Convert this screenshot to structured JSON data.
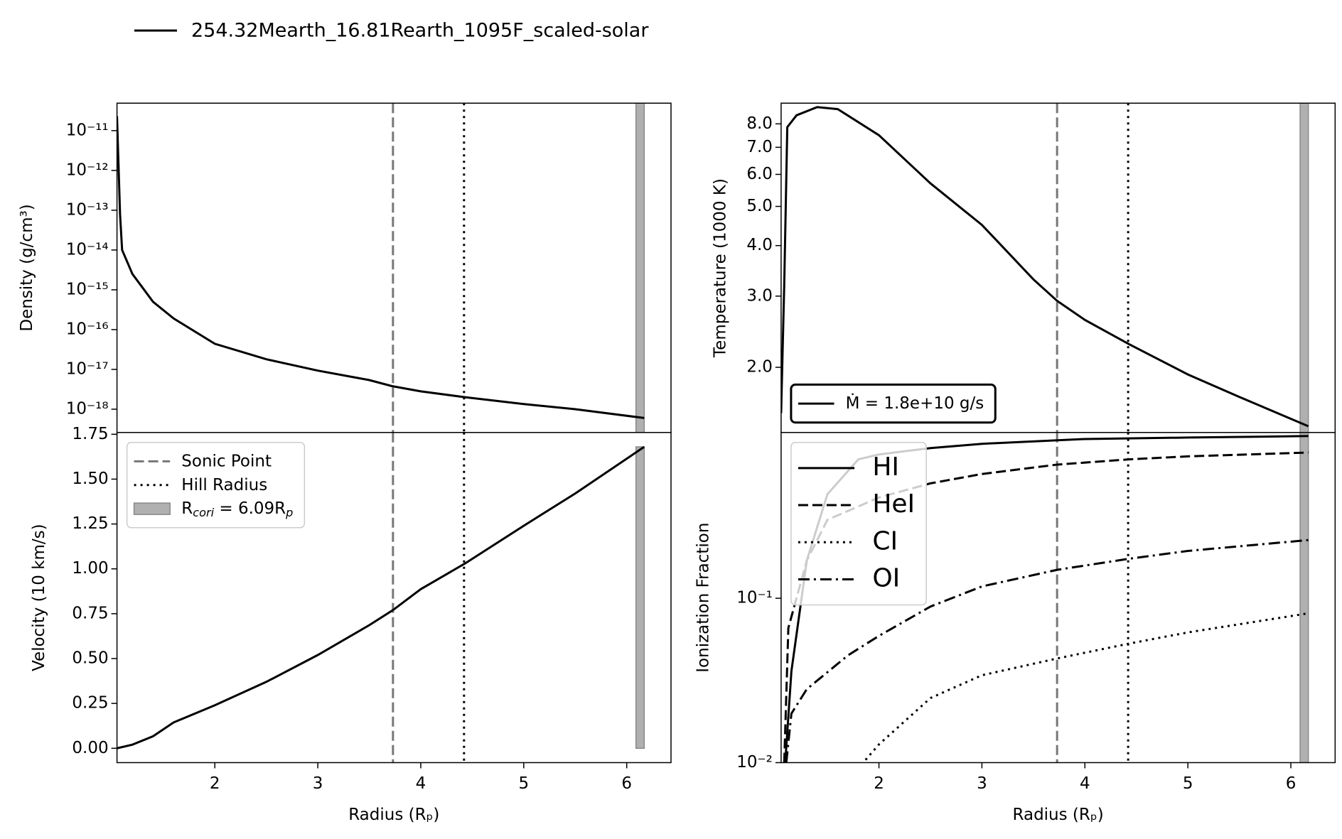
{
  "markers": {
    "sonic_point": {
      "x": 3.73,
      "color": "#777777",
      "style": "dashed"
    },
    "hill_radius": {
      "x": 4.42,
      "color": "#000000",
      "style": "dotted"
    },
    "coriolis_band": {
      "x": [
        6.09,
        6.17
      ],
      "color": "#b0b0b0"
    }
  },
  "chart_data": [
    {
      "type": "line",
      "ylabel": "Density (g/cm³)",
      "log_y": true,
      "xlim": [
        1.05,
        6.43
      ],
      "ylim": [
        2.6e-19,
        4.9e-11
      ],
      "yticks": [
        {
          "value": 1e-11,
          "label": "10⁻¹¹"
        },
        {
          "value": 1e-12,
          "label": "10⁻¹²"
        },
        {
          "value": 1e-13,
          "label": "10⁻¹³"
        },
        {
          "value": 1e-14,
          "label": "10⁻¹⁴"
        },
        {
          "value": 1e-15,
          "label": "10⁻¹⁵"
        },
        {
          "value": 1e-16,
          "label": "10⁻¹⁶"
        },
        {
          "value": 1e-17,
          "label": "10⁻¹⁷"
        },
        {
          "value": 1e-18,
          "label": "10⁻¹⁸"
        }
      ],
      "bands": "full",
      "series": [
        {
          "name": "254.32Mearth_16.81Rearth_1095F_scaled-solar",
          "color": "#000000",
          "style": "solid",
          "x": [
            1.05,
            1.08,
            1.1,
            1.2,
            1.4,
            1.6,
            2.0,
            2.5,
            3.0,
            3.5,
            3.72,
            4.0,
            4.43,
            5.0,
            5.5,
            6.17
          ],
          "values": [
            2.3e-11,
            7.9e-14,
            1e-14,
            2.5e-15,
            5e-16,
            1.9e-16,
            4.4e-17,
            1.8e-17,
            9.3e-18,
            5.4e-18,
            3.8e-18,
            2.8e-18,
            2e-18,
            1.35e-18,
            1e-18,
            6e-19
          ]
        }
      ]
    },
    {
      "type": "line",
      "ylabel": "Temperature (1000 K)",
      "log_y": true,
      "xlim": [
        1.05,
        6.43
      ],
      "ylim": [
        1.38,
        9.0
      ],
      "yticks": [
        {
          "value": 2,
          "label": "2.0"
        },
        {
          "value": 3,
          "label": "3.0"
        },
        {
          "value": 4,
          "label": "4.0"
        },
        {
          "value": 5,
          "label": "5.0"
        },
        {
          "value": 6,
          "label": "6.0"
        },
        {
          "value": 7,
          "label": "7.0"
        },
        {
          "value": 8,
          "label": "8.0"
        }
      ],
      "bands": "full",
      "legend": {
        "loc": "lower left",
        "font": 23,
        "frame": "#000000"
      },
      "series": [
        {
          "name": "Ṁ = 1.8e+10 g/s",
          "color": "#000000",
          "style": "solid",
          "x": [
            1.05,
            1.08,
            1.11,
            1.2,
            1.4,
            1.6,
            2.0,
            2.5,
            3.0,
            3.5,
            3.73,
            4.0,
            4.43,
            5.0,
            5.5,
            6.17
          ],
          "values": [
            1.54,
            3.2,
            7.85,
            8.4,
            8.8,
            8.7,
            7.5,
            5.7,
            4.5,
            3.3,
            2.92,
            2.62,
            2.28,
            1.92,
            1.69,
            1.43
          ]
        }
      ]
    },
    {
      "type": "line",
      "ylabel": "Velocity (10 km/s)",
      "xlabel": "Radius (Rₚ)",
      "log_y": false,
      "xlim": [
        1.05,
        6.43
      ],
      "ylim": [
        -0.08,
        1.76
      ],
      "xticks": [
        2,
        3,
        4,
        5,
        6
      ],
      "yticks": [
        {
          "value": 0,
          "label": "0.00"
        },
        {
          "value": 0.25,
          "label": "0.25"
        },
        {
          "value": 0.5,
          "label": "0.50"
        },
        {
          "value": 0.75,
          "label": "0.75"
        },
        {
          "value": 1,
          "label": "1.00"
        },
        {
          "value": 1.25,
          "label": "1.25"
        },
        {
          "value": 1.5,
          "label": "1.50"
        },
        {
          "value": 1.75,
          "label": "1.75"
        }
      ],
      "bands": "to_max",
      "legend": {
        "loc": "upper left",
        "font": 23,
        "frame": "#cccccc",
        "entries": [
          {
            "label": [
              "Sonic Point"
            ],
            "marker": "sonic_point"
          },
          {
            "label": [
              "Hill Radius"
            ],
            "marker": "hill_radius"
          },
          {
            "label": [
              "R",
              "cori",
              " = 6.09R",
              "p"
            ],
            "marker": "coriolis_band"
          }
        ]
      },
      "series": [
        {
          "color": "#000000",
          "style": "solid",
          "x": [
            1.05,
            1.2,
            1.4,
            1.6,
            2.0,
            2.5,
            3.0,
            3.5,
            3.73,
            4.0,
            4.43,
            5.0,
            5.5,
            6.17
          ],
          "values": [
            0,
            0.02,
            0.067,
            0.144,
            0.24,
            0.37,
            0.52,
            0.686,
            0.77,
            0.887,
            1.03,
            1.24,
            1.42,
            1.68
          ]
        }
      ]
    },
    {
      "type": "line",
      "ylabel": "Ionization Fraction",
      "xlabel": "Radius (Rₚ)",
      "log_y": true,
      "xlim": [
        1.05,
        6.43
      ],
      "ylim": [
        0.01,
        1.02
      ],
      "xticks": [
        2,
        3,
        4,
        5,
        6
      ],
      "yticks": [
        {
          "value": 0.01,
          "label": "10⁻²"
        },
        {
          "value": 0.1,
          "label": "10⁻¹"
        }
      ],
      "bands": "full",
      "legend": {
        "loc": "upper left",
        "font": 36,
        "frame": "#cccccc"
      },
      "series": [
        {
          "name": "HI",
          "color": "#000000",
          "style": "solid",
          "x": [
            1.09,
            1.15,
            1.3,
            1.5,
            1.8,
            2.0,
            2.5,
            3.0,
            4.0,
            5.0,
            6.17
          ],
          "values": [
            0.01,
            0.036,
            0.17,
            0.43,
            0.7,
            0.75,
            0.82,
            0.87,
            0.93,
            0.95,
            0.97
          ]
        },
        {
          "name": "HeI",
          "color": "#000000",
          "style": "dashed",
          "x": [
            1.08,
            1.12,
            1.3,
            1.5,
            2.0,
            2.5,
            3.0,
            3.73,
            4.43,
            5.0,
            6.17
          ],
          "values": [
            0.01,
            0.066,
            0.17,
            0.3,
            0.41,
            0.5,
            0.57,
            0.65,
            0.7,
            0.73,
            0.77
          ]
        },
        {
          "name": "CI",
          "color": "#000000",
          "style": "dotted",
          "x": [
            1.87,
            2.0,
            2.5,
            3.0,
            3.73,
            4.43,
            5.0,
            6.17
          ],
          "values": [
            0.0104,
            0.0129,
            0.0247,
            0.034,
            0.043,
            0.053,
            0.062,
            0.081
          ]
        },
        {
          "name": "OI",
          "color": "#000000",
          "style": "dashdot",
          "x": [
            1.1,
            1.15,
            1.3,
            1.7,
            2.0,
            2.5,
            3.0,
            3.73,
            4.43,
            5.0,
            6.17
          ],
          "values": [
            0.01,
            0.0199,
            0.028,
            0.045,
            0.059,
            0.089,
            0.118,
            0.149,
            0.174,
            0.194,
            0.226
          ]
        }
      ]
    }
  ]
}
